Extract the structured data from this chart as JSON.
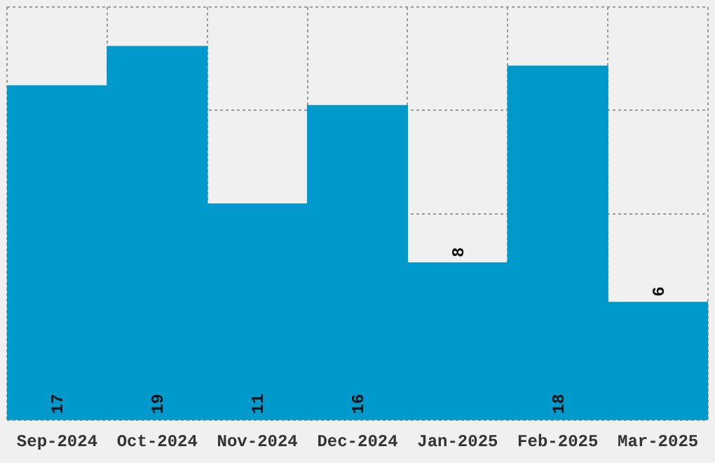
{
  "chart_data": {
    "type": "bar",
    "categories": [
      "Sep-2024",
      "Oct-2024",
      "Nov-2024",
      "Dec-2024",
      "Jan-2025",
      "Feb-2025",
      "Mar-2025"
    ],
    "values": [
      17,
      19,
      11,
      16,
      8,
      18,
      6
    ],
    "color": "#0099cc",
    "ylim": [
      0,
      21
    ],
    "tick_labels": "x",
    "grid": true,
    "data_labels": true
  }
}
